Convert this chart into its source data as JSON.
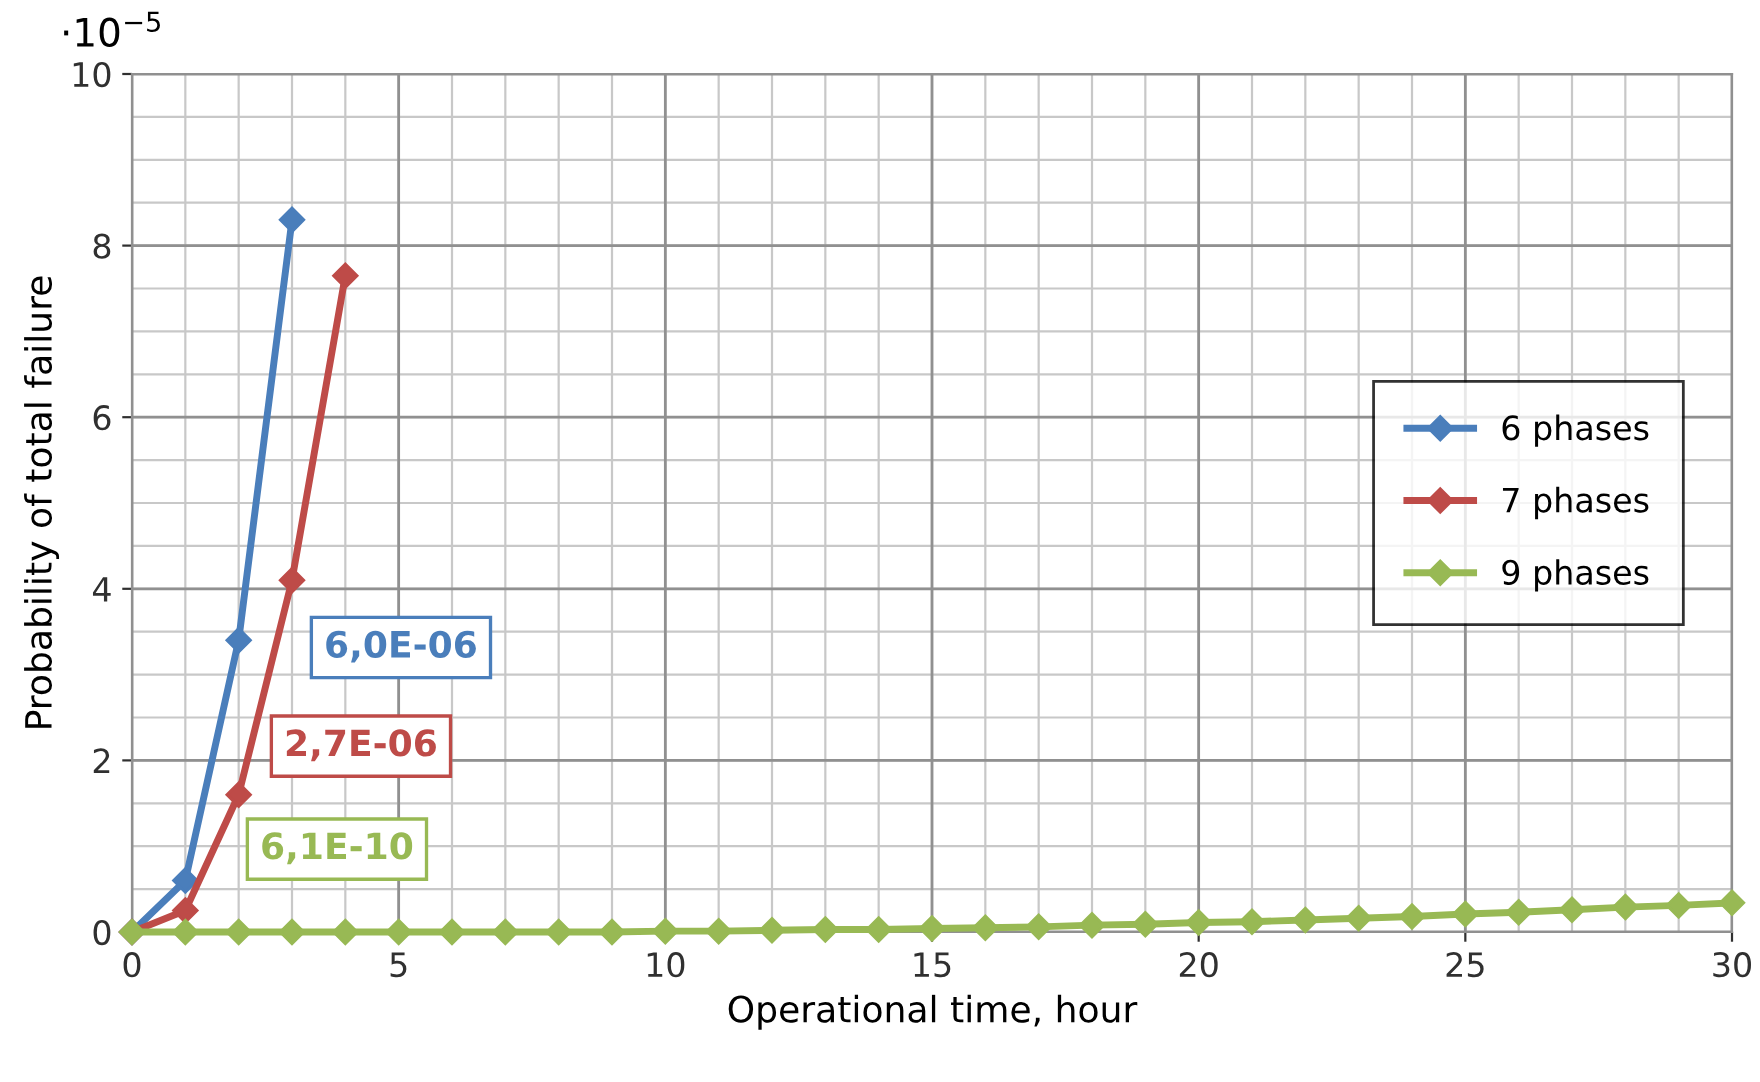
{
  "chart_data": {
    "type": "line",
    "xlabel": "Operational time, hour",
    "ylabel": "Probability of total failure",
    "annotations": [
      "6,0E-06",
      "2,7E-06",
      "6,1E-10",
      "·10$^{−5}$"
    ],
    "series": [
      {
        "name": "6 phases",
        "color": "#4a7ebb",
        "x": [
          0,
          1,
          2,
          3
        ],
        "values": [
          0,
          0.6,
          3.4,
          8.3
        ]
      },
      {
        "name": "7 phases",
        "color": "#be4b48",
        "x": [
          0,
          1,
          2,
          3,
          4
        ],
        "values": [
          0,
          0.25,
          1.6,
          4.1,
          7.65
        ]
      },
      {
        "name": "9 phases",
        "color": "#98b954",
        "x": [
          0,
          1,
          2,
          3,
          4,
          5,
          6,
          7,
          8,
          9,
          10,
          11,
          12,
          13,
          14,
          15,
          16,
          17,
          18,
          19,
          20,
          21,
          22,
          23,
          24,
          25,
          26,
          27,
          28,
          29,
          30
        ],
        "values": [
          0,
          0,
          0,
          0,
          0,
          0,
          0,
          0,
          0,
          0,
          0.01,
          0.01,
          0.02,
          0.03,
          0.03,
          0.04,
          0.05,
          0.06,
          0.08,
          0.09,
          0.11,
          0.12,
          0.14,
          0.16,
          0.18,
          0.21,
          0.23,
          0.26,
          0.29,
          0.31,
          0.34
        ]
      }
    ],
    "xlim": [
      0,
      30
    ],
    "ylim": [
      0,
      10
    ],
    "xticks": [
      0,
      5,
      10,
      15,
      20,
      25,
      30
    ],
    "yticks": [
      0,
      2,
      4,
      6,
      8,
      10
    ],
    "grid": true,
    "legend": "center right",
    "marker": "diamond",
    "line_style": "solid"
  }
}
